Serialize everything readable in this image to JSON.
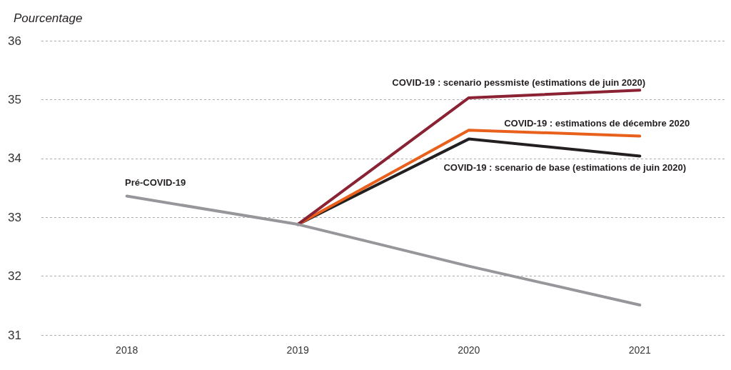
{
  "chart_data": {
    "type": "line",
    "ylabel": "Pourcentage",
    "categories": [
      "2018",
      "2019",
      "2020",
      "2021"
    ],
    "series": [
      {
        "name": "Pré-COVID-19",
        "color": "#97969b",
        "values": [
          33.36,
          32.88,
          32.17,
          31.51
        ]
      },
      {
        "name": "COVID-19 : scenario pessmiste (estimations de juin 2020)",
        "color": "#8b2234",
        "values": [
          null,
          32.88,
          35.03,
          35.16
        ]
      },
      {
        "name": "COVID-19 : estimations de décembre 2020",
        "color": "#e8601c",
        "values": [
          null,
          32.88,
          34.48,
          34.38
        ]
      },
      {
        "name": "COVID-19 : scenario de base (estimations de juin 2020)",
        "color": "#231f20",
        "values": [
          null,
          32.88,
          34.33,
          34.04
        ]
      }
    ],
    "ylim": [
      31,
      36
    ],
    "yticks": [
      31,
      32,
      33,
      34,
      35,
      36
    ],
    "grid": "y",
    "legend": false,
    "marker": "none",
    "line_style": "solid"
  }
}
